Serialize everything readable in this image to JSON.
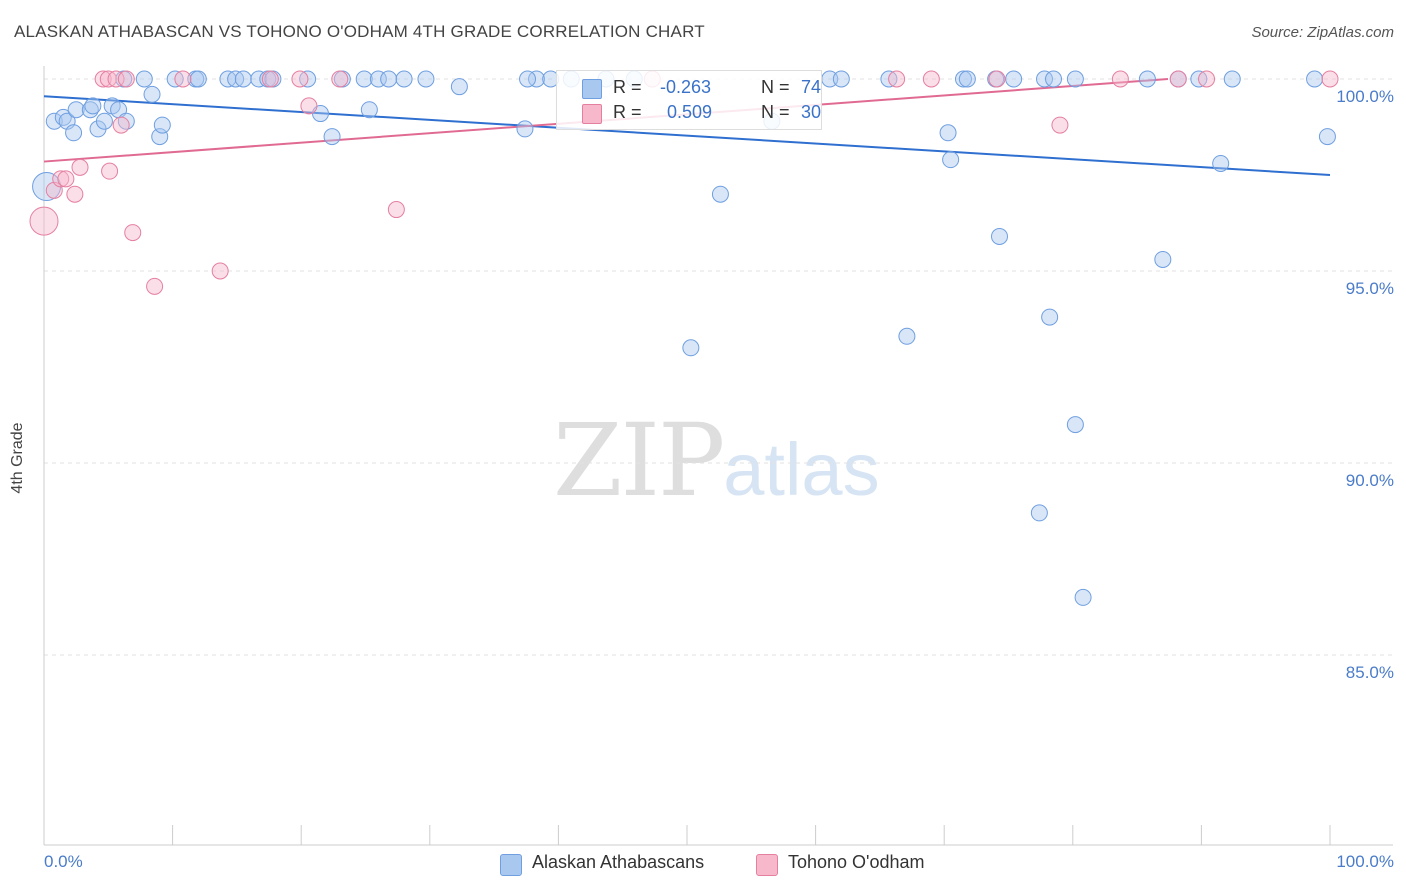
{
  "title": "ALASKAN ATHABASCAN VS TOHONO O'ODHAM 4TH GRADE CORRELATION CHART",
  "source": "Source: ZipAtlas.com",
  "watermark": {
    "zip": "ZIP",
    "atlas": "atlas"
  },
  "stats": [
    {
      "r_label": "R =",
      "r": "-0.263",
      "n_label": "N =",
      "n": "74",
      "color": "#a8c8f0",
      "border": "#6f9fe0"
    },
    {
      "r_label": "R =",
      "r": "0.509",
      "n_label": "N =",
      "n": "30",
      "color": "#f7b8cc",
      "border": "#e57fa0"
    }
  ],
  "legend": [
    {
      "label": "Alaskan Athabascans",
      "color": "#a8c8f0",
      "border": "#6f9fe0"
    },
    {
      "label": "Tohono O'odham",
      "color": "#f7b8cc",
      "border": "#e57fa0"
    }
  ],
  "chart_data": {
    "type": "scatter",
    "title": "ALASKAN ATHABASCAN VS TOHONO O'ODHAM 4TH GRADE CORRELATION CHART",
    "xlabel": "",
    "ylabel": "4th Grade",
    "xlim": [
      0,
      100
    ],
    "ylim": [
      80.8,
      100.8
    ],
    "x_ticks": [
      {
        "value": 0,
        "label": "0.0%"
      },
      {
        "value": 100,
        "label": "100.0%"
      }
    ],
    "y_ticks": [
      {
        "value": 100,
        "label": "100.0%"
      },
      {
        "value": 95,
        "label": "95.0%"
      },
      {
        "value": 90,
        "label": "90.0%"
      },
      {
        "value": 85,
        "label": "85.0%"
      }
    ],
    "grid": "horizontal dashed",
    "legend_position": "bottom",
    "series": [
      {
        "name": "Alaskan Athabascans",
        "color": "#6f9fe0",
        "fill": "#a8c8f0",
        "trend": {
          "x": [
            0,
            100
          ],
          "y": [
            99.55,
            97.5
          ]
        },
        "points": [
          [
            0.2,
            97.2
          ],
          [
            0.8,
            98.9
          ],
          [
            1.5,
            99.0
          ],
          [
            1.8,
            98.9
          ],
          [
            2.3,
            98.6
          ],
          [
            2.5,
            99.2
          ],
          [
            3.6,
            99.2
          ],
          [
            3.8,
            99.3
          ],
          [
            4.2,
            98.7
          ],
          [
            4.7,
            98.9
          ],
          [
            5.3,
            99.3
          ],
          [
            5.8,
            99.2
          ],
          [
            6.4,
            98.9
          ],
          [
            6.2,
            100.0
          ],
          [
            7.8,
            100.0
          ],
          [
            8.4,
            99.6
          ],
          [
            9.0,
            98.5
          ],
          [
            9.2,
            98.8
          ],
          [
            10.2,
            100.0
          ],
          [
            11.8,
            100.0
          ],
          [
            12.0,
            100.0
          ],
          [
            14.3,
            100.0
          ],
          [
            14.9,
            100.0
          ],
          [
            15.5,
            100.0
          ],
          [
            16.7,
            100.0
          ],
          [
            17.4,
            100.0
          ],
          [
            17.8,
            100.0
          ],
          [
            20.5,
            100.0
          ],
          [
            21.5,
            99.1
          ],
          [
            22.4,
            98.5
          ],
          [
            23.2,
            100.0
          ],
          [
            24.9,
            100.0
          ],
          [
            25.3,
            99.2
          ],
          [
            26.0,
            100.0
          ],
          [
            26.8,
            100.0
          ],
          [
            28.0,
            100.0
          ],
          [
            29.7,
            100.0
          ],
          [
            32.3,
            99.8
          ],
          [
            37.4,
            98.7
          ],
          [
            38.3,
            100.0
          ],
          [
            39.4,
            100.0
          ],
          [
            41.0,
            100.0
          ],
          [
            43.7,
            100.0
          ],
          [
            45.9,
            100.0
          ],
          [
            50.3,
            93.0
          ],
          [
            52.6,
            97.0
          ],
          [
            56.6,
            98.9
          ],
          [
            61.1,
            100.0
          ],
          [
            62.0,
            100.0
          ],
          [
            65.7,
            100.0
          ],
          [
            67.1,
            93.3
          ],
          [
            70.3,
            98.6
          ],
          [
            70.5,
            97.9
          ],
          [
            71.5,
            100.0
          ],
          [
            71.8,
            100.0
          ],
          [
            74.0,
            100.0
          ],
          [
            74.3,
            95.9
          ],
          [
            75.4,
            100.0
          ],
          [
            77.4,
            88.7
          ],
          [
            77.8,
            100.0
          ],
          [
            78.2,
            93.8
          ],
          [
            78.5,
            100.0
          ],
          [
            80.2,
            100.0
          ],
          [
            80.2,
            91.0
          ],
          [
            80.8,
            86.5
          ],
          [
            85.8,
            100.0
          ],
          [
            87.0,
            95.3
          ],
          [
            88.2,
            100.0
          ],
          [
            89.8,
            100.0
          ],
          [
            91.5,
            97.8
          ],
          [
            92.4,
            100.0
          ],
          [
            98.8,
            100.0
          ],
          [
            99.8,
            98.5
          ],
          [
            37.6,
            100.0
          ]
        ]
      },
      {
        "name": "Tohono O'odham",
        "color": "#e57fa0",
        "fill": "#f7b8cc",
        "trend": {
          "x": [
            0,
            87.4
          ],
          "y": [
            97.85,
            100.0
          ]
        },
        "points": [
          [
            0.0,
            96.3
          ],
          [
            0.8,
            97.1
          ],
          [
            1.3,
            97.4
          ],
          [
            1.7,
            97.4
          ],
          [
            2.4,
            97.0
          ],
          [
            2.8,
            97.7
          ],
          [
            4.6,
            100.0
          ],
          [
            5.0,
            100.0
          ],
          [
            5.1,
            97.6
          ],
          [
            5.6,
            100.0
          ],
          [
            6.0,
            98.8
          ],
          [
            6.4,
            100.0
          ],
          [
            6.9,
            96.0
          ],
          [
            8.6,
            94.6
          ],
          [
            10.8,
            100.0
          ],
          [
            13.7,
            95.0
          ],
          [
            17.6,
            100.0
          ],
          [
            19.9,
            100.0
          ],
          [
            20.6,
            99.3
          ],
          [
            23.0,
            100.0
          ],
          [
            27.4,
            96.6
          ],
          [
            47.3,
            100.0
          ],
          [
            66.3,
            100.0
          ],
          [
            69.0,
            100.0
          ],
          [
            74.1,
            100.0
          ],
          [
            79.0,
            98.8
          ],
          [
            83.7,
            100.0
          ],
          [
            88.2,
            100.0
          ],
          [
            90.4,
            100.0
          ],
          [
            100.0,
            100.0
          ]
        ]
      }
    ]
  }
}
